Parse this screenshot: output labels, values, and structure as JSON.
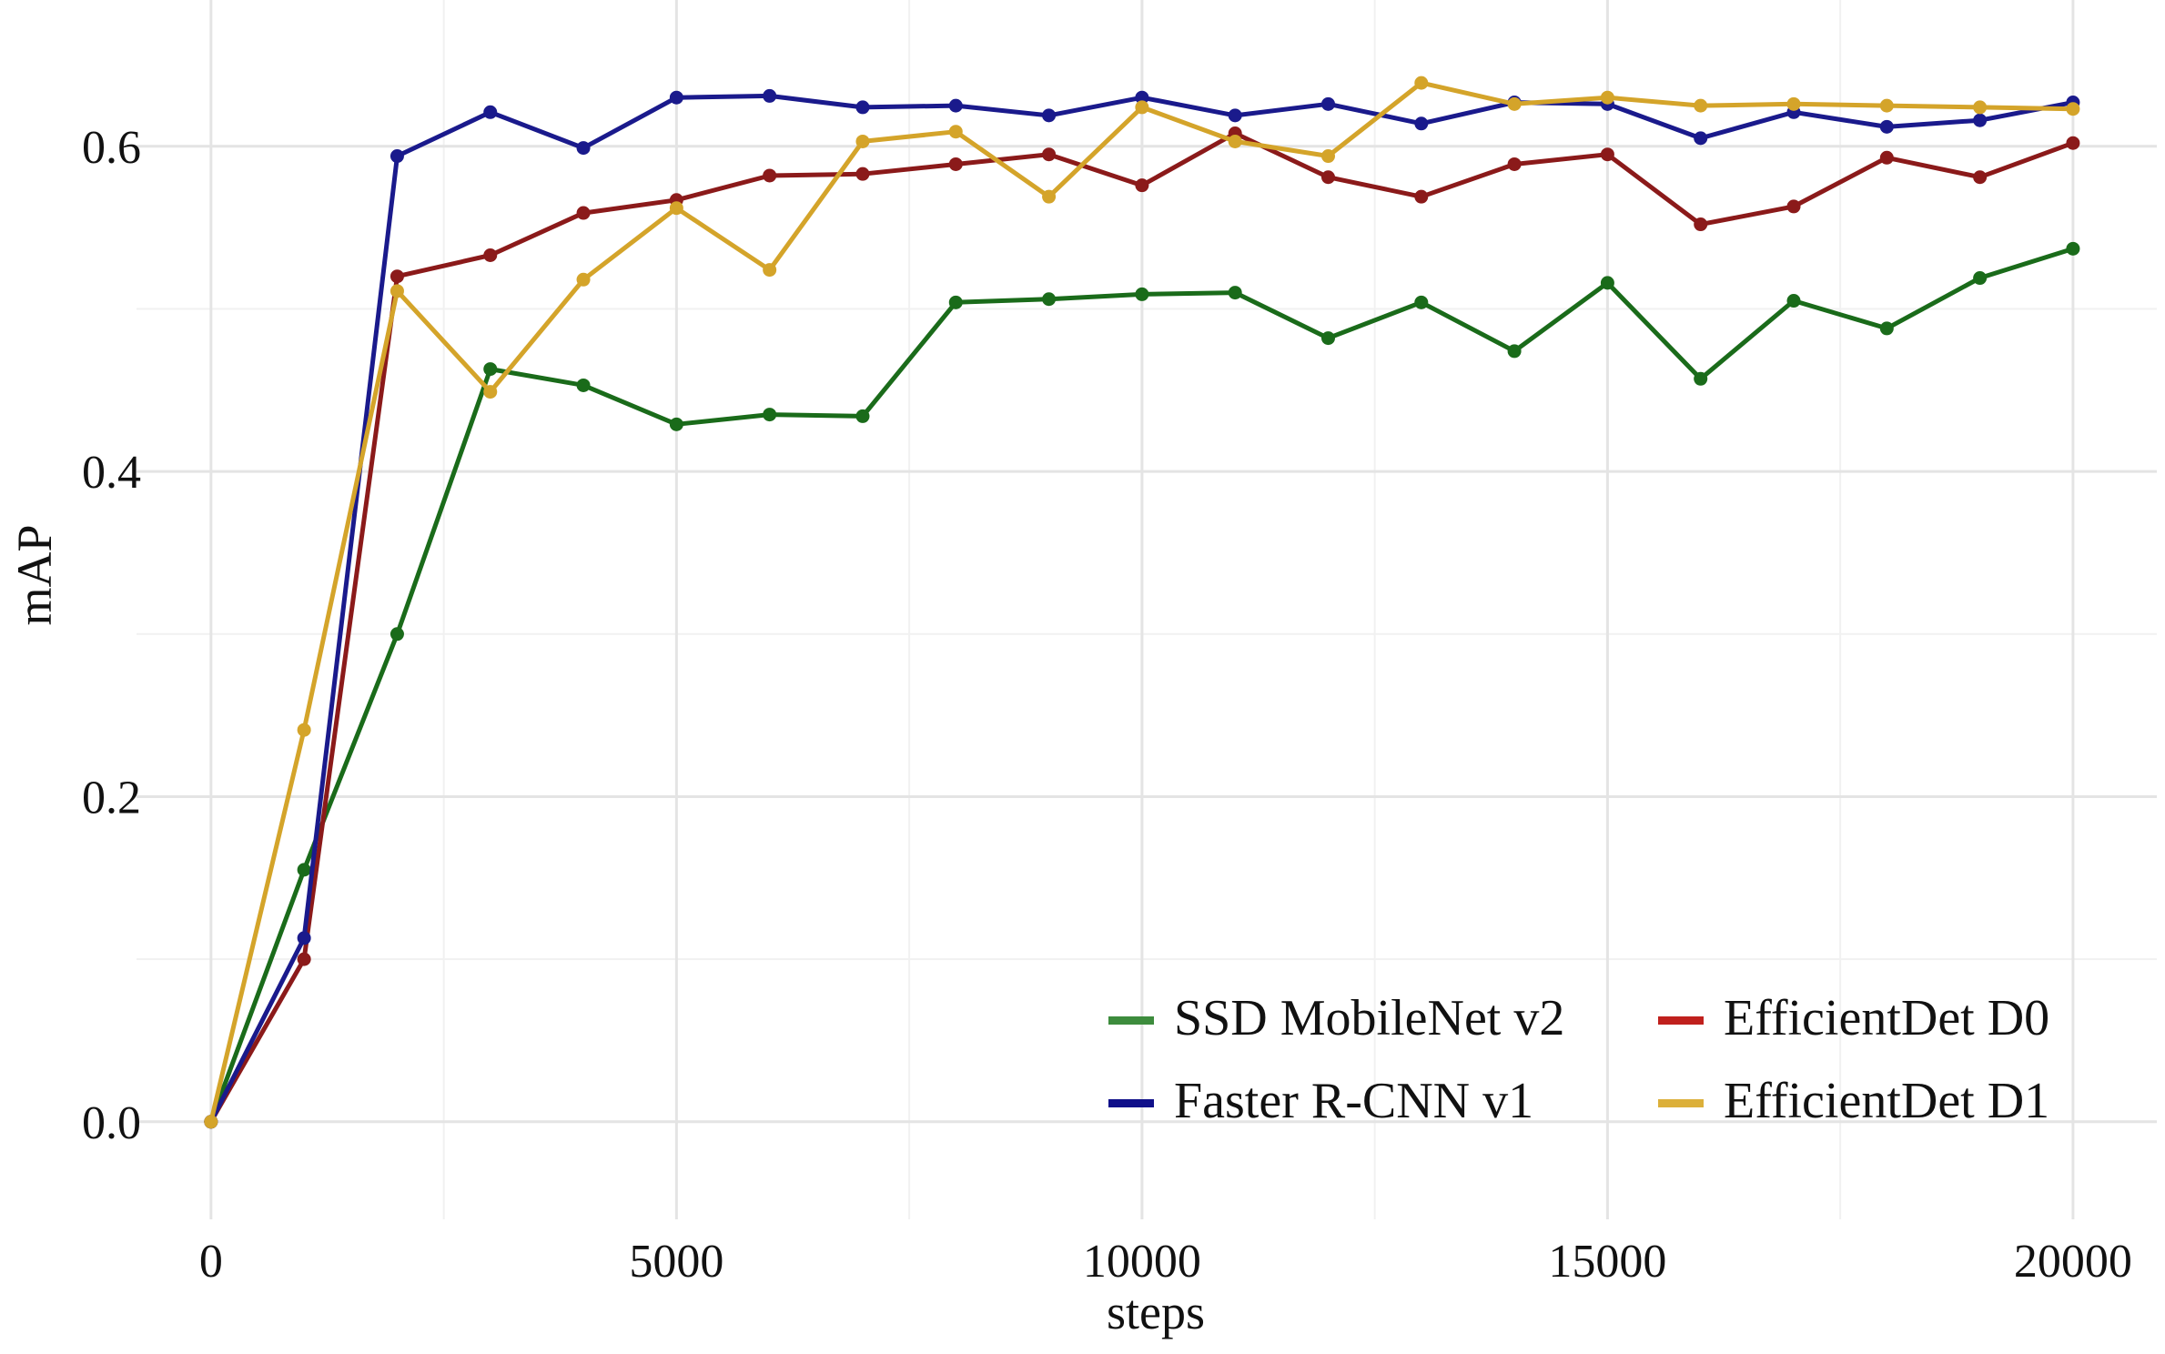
{
  "chart_data": {
    "type": "line",
    "title": "",
    "xlabel": "steps",
    "ylabel": "mAP",
    "xlim": [
      -800,
      20900
    ],
    "ylim": [
      -0.06,
      0.69
    ],
    "xticks": [
      0,
      5000,
      10000,
      15000,
      20000
    ],
    "xtick_labels": [
      "0",
      "5000",
      "10000",
      "15000",
      "20000"
    ],
    "yticks": [
      0.0,
      0.2,
      0.4,
      0.6
    ],
    "ytick_labels": [
      "0.0",
      "0.2",
      "0.4",
      "0.6"
    ],
    "grid": true,
    "legend_position": "bottom-right",
    "x": [
      0,
      1000,
      2000,
      3000,
      4000,
      5000,
      6000,
      7000,
      8000,
      9000,
      10000,
      11000,
      12000,
      13000,
      14000,
      15000,
      16000,
      17000,
      18000,
      19000,
      20000
    ],
    "series": [
      {
        "name": "SSD MobileNet v2",
        "color": "#1a6b1a",
        "legend_color": "#3d8c3d",
        "values": [
          0.0,
          0.155,
          0.3,
          0.463,
          0.453,
          0.429,
          0.435,
          0.434,
          0.504,
          0.506,
          0.509,
          0.51,
          0.482,
          0.504,
          0.474,
          0.516,
          0.457,
          0.505,
          0.488,
          0.519,
          0.537
        ]
      },
      {
        "name": "EfficientDet D0",
        "color": "#8b1a1a",
        "legend_color": "#c0201d",
        "values": [
          0.0,
          0.1,
          0.52,
          0.533,
          0.559,
          0.567,
          0.582,
          0.583,
          0.589,
          0.595,
          0.576,
          0.608,
          0.581,
          0.569,
          0.589,
          0.595,
          0.552,
          0.563,
          0.593,
          0.581,
          0.602
        ]
      },
      {
        "name": "Faster R-CNN v1",
        "color": "#1a1a8c",
        "legend_color": "#10108a",
        "values": [
          0.0,
          0.113,
          0.594,
          0.621,
          0.599,
          0.63,
          0.631,
          0.624,
          0.625,
          0.619,
          0.63,
          0.619,
          0.626,
          0.614,
          0.627,
          0.626,
          0.605,
          0.621,
          0.612,
          0.616,
          0.627
        ]
      },
      {
        "name": "EfficientDet D1",
        "color": "#d4a42a",
        "legend_color": "#dcb03a",
        "values": [
          0.0,
          0.241,
          0.511,
          0.449,
          0.518,
          0.562,
          0.524,
          0.603,
          0.609,
          0.569,
          0.624,
          0.603,
          0.594,
          0.639,
          0.626,
          0.63,
          0.625,
          0.626,
          0.625,
          0.624,
          0.623
        ]
      }
    ],
    "legend_order": [
      "SSD MobileNet v2",
      "EfficientDet D0",
      "Faster R-CNN v1",
      "EfficientDet D1"
    ]
  }
}
